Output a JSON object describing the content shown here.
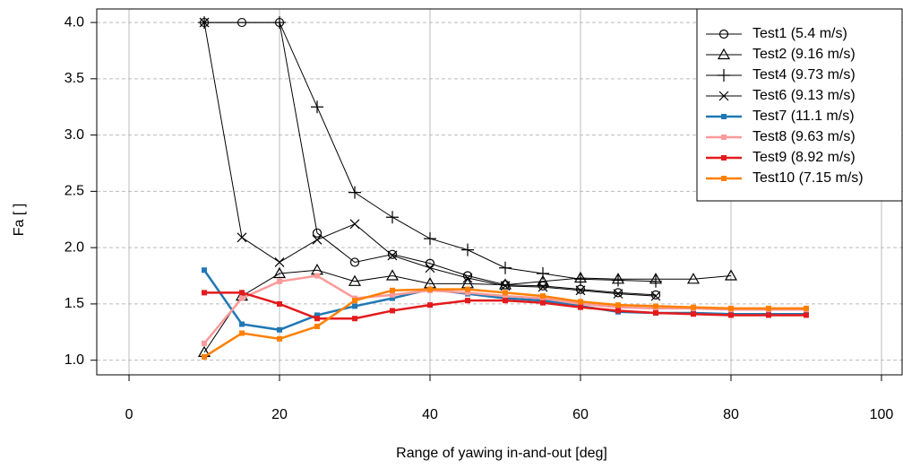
{
  "chart_data": {
    "type": "line",
    "x_label": "Range of yawing in-and-out [deg]",
    "y_label": "Fa [ ]",
    "xlim": [
      -4.29,
      102.86
    ],
    "ylim": [
      0.87,
      4.12
    ],
    "xticks": [
      0,
      20,
      40,
      60,
      80,
      100
    ],
    "yticks": [
      {
        "value": 1,
        "label": "1.0"
      },
      1.5,
      {
        "value": 2,
        "label": "2.0"
      },
      2.5,
      {
        "value": 3,
        "label": "3.0"
      },
      3.5,
      {
        "value": 4,
        "label": "4.0"
      }
    ],
    "grid": true,
    "legend": "top-right",
    "series": [
      {
        "name": "Test1 (5.4 m/s)",
        "color": "#000000",
        "marker": "circle",
        "x": [
          10,
          15,
          20,
          25,
          30,
          35,
          40,
          45,
          50,
          55,
          60,
          65,
          70
        ],
        "values": [
          4.0,
          4.0,
          4.0,
          2.13,
          1.87,
          1.94,
          1.86,
          1.75,
          1.67,
          1.66,
          1.63,
          1.6,
          1.58
        ]
      },
      {
        "name": "Test2 (9.16 m/s)",
        "color": "#000000",
        "marker": "triangle",
        "x": [
          10,
          15,
          20,
          25,
          30,
          35,
          40,
          45,
          50,
          55,
          60,
          65,
          70,
          75,
          80
        ],
        "values": [
          1.07,
          1.57,
          1.77,
          1.8,
          1.7,
          1.75,
          1.68,
          1.68,
          1.67,
          1.7,
          1.73,
          1.72,
          1.72,
          1.72,
          1.75
        ]
      },
      {
        "name": "Test4 (9.73 m/s)",
        "color": "#000000",
        "marker": "plus",
        "x": [
          10,
          20,
          25,
          30,
          35,
          40,
          45,
          50,
          55,
          60,
          65,
          70
        ],
        "values": [
          4.0,
          4.0,
          3.25,
          2.49,
          2.27,
          2.08,
          1.98,
          1.82,
          1.77,
          1.72,
          1.71,
          1.7
        ]
      },
      {
        "name": "Test6 (9.13 m/s)",
        "color": "#000000",
        "marker": "cross",
        "x": [
          10,
          15,
          20,
          25,
          30,
          35,
          40,
          45,
          50,
          55,
          60,
          65,
          70
        ],
        "values": [
          4.0,
          2.09,
          1.87,
          2.07,
          2.21,
          1.93,
          1.82,
          1.73,
          1.66,
          1.65,
          1.62,
          1.59,
          1.57
        ]
      },
      {
        "name": "Test7 (11.1 m/s)",
        "color": "#1f78b4",
        "marker": "square",
        "x": [
          10,
          15,
          20,
          25,
          30,
          35,
          40,
          45,
          50,
          55,
          60,
          65,
          70,
          75,
          80,
          85,
          90
        ],
        "values": [
          1.8,
          1.32,
          1.27,
          1.4,
          1.48,
          1.55,
          1.63,
          1.59,
          1.55,
          1.53,
          1.48,
          1.43,
          1.42,
          1.42,
          1.41,
          1.41,
          1.41
        ]
      },
      {
        "name": "Test8 (9.63 m/s)",
        "color": "#fb9a99",
        "marker": "square",
        "x": [
          10,
          15,
          20,
          25,
          30,
          35,
          40,
          45,
          50,
          55,
          60,
          65,
          70,
          75,
          80,
          85,
          90
        ],
        "values": [
          1.15,
          1.55,
          1.7,
          1.75,
          1.55,
          1.58,
          1.62,
          1.6,
          1.57,
          1.55,
          1.5,
          1.47,
          1.46,
          1.46,
          1.45,
          1.45,
          1.45
        ]
      },
      {
        "name": "Test9 (8.92 m/s)",
        "color": "#e31a1c",
        "marker": "square",
        "x": [
          10,
          15,
          20,
          25,
          30,
          35,
          40,
          45,
          50,
          55,
          60,
          65,
          70,
          75,
          80,
          85,
          90
        ],
        "values": [
          1.6,
          1.6,
          1.5,
          1.37,
          1.37,
          1.44,
          1.49,
          1.53,
          1.53,
          1.51,
          1.47,
          1.44,
          1.42,
          1.41,
          1.4,
          1.4,
          1.4
        ]
      },
      {
        "name": "Test10 (7.15 m/s)",
        "color": "#ff7f00",
        "marker": "square",
        "x": [
          10,
          15,
          20,
          25,
          30,
          35,
          40,
          45,
          50,
          55,
          60,
          65,
          70,
          75,
          80,
          85,
          90
        ],
        "values": [
          1.03,
          1.24,
          1.19,
          1.3,
          1.53,
          1.62,
          1.63,
          1.63,
          1.6,
          1.57,
          1.52,
          1.49,
          1.48,
          1.47,
          1.46,
          1.46,
          1.46
        ]
      }
    ]
  }
}
